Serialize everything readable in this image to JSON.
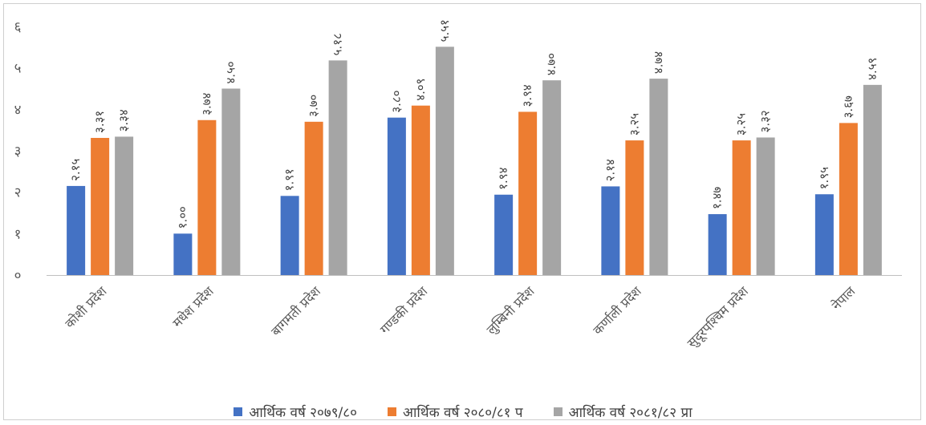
{
  "chart_data": {
    "type": "bar",
    "categories": [
      "कोशी प्रदेश",
      "मधेश प्रदेश",
      "बागमती प्रदेश",
      "गण्डकी प्रदेश",
      "लुम्बिनी प्रदेश",
      "कर्णाली प्रदेश",
      "सुदूरपश्चिम प्रदेश",
      "नेपाल"
    ],
    "series": [
      {
        "name": "आर्थिक वर्ष २०७९/८०",
        "color": "#4472c4",
        "values": [
          2.15,
          1.0,
          1.91,
          3.8,
          1.94,
          2.14,
          1.47,
          1.95
        ],
        "labels": [
          "२.१५",
          "१.००",
          "१.९१",
          "३.८०",
          "१.९४",
          "२.१४",
          "१.४७",
          "१.९५"
        ]
      },
      {
        "name": "आर्थिक वर्ष २०८०/८१ प",
        "color": "#ed7d31",
        "values": [
          3.31,
          3.74,
          3.7,
          4.09,
          3.94,
          3.25,
          3.25,
          3.67
        ],
        "labels": [
          "३.३१",
          "३.७४",
          "३.७०",
          "४.०९",
          "३.९४",
          "३.२५",
          "३.२५",
          "३.६७"
        ]
      },
      {
        "name": "आर्थिक वर्ष २०८१/८२ प्रा",
        "color": "#a5a5a5",
        "values": [
          3.34,
          4.5,
          5.18,
          5.51,
          4.7,
          4.74,
          3.32,
          4.59
        ],
        "labels": [
          "३.३४",
          "४.५०",
          "५.१८",
          "५.५१",
          "४.७०",
          "४.७४",
          "३.३२",
          "४.५९"
        ]
      }
    ],
    "ylim": [
      0,
      6
    ],
    "yticks": [
      "०",
      "१",
      "२",
      "३",
      "४",
      "५",
      "६"
    ],
    "grid": false,
    "legend_position": "bottom",
    "title": "",
    "xlabel": "",
    "ylabel": ""
  }
}
